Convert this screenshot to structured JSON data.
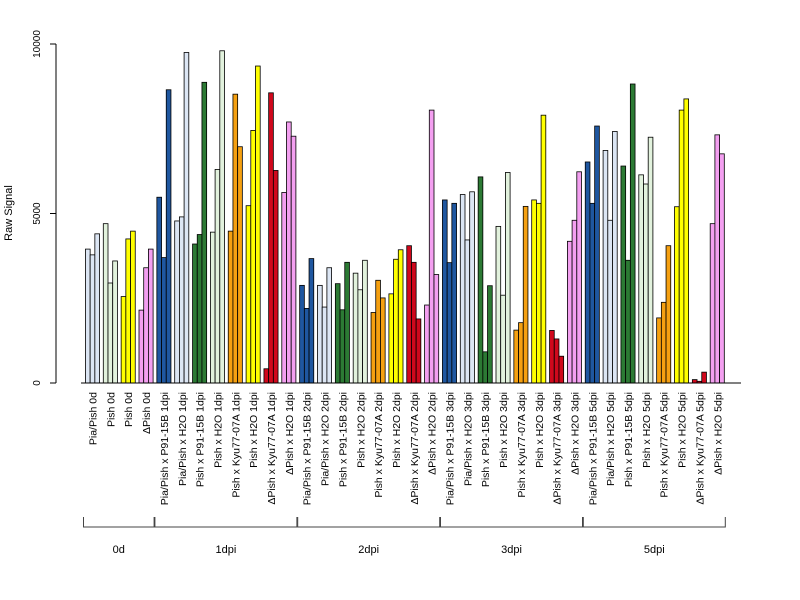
{
  "chart_data": {
    "type": "bar",
    "ylabel": "Raw Signal",
    "ylim": [
      0,
      10000
    ],
    "yticks": [
      "0",
      "5000",
      "10000"
    ],
    "legend": "none",
    "grid": false,
    "palette": {
      "light-blue": "#dce6f4",
      "dark-blue": "#1f57a0",
      "dark-green": "#2c7a34",
      "light-green": "#e2f2dd",
      "orange": "#f5a011",
      "yellow": "#ffff00",
      "red": "#d0081c",
      "pink": "#f39ff0"
    },
    "categories": [
      "Pia/Pish 0d",
      "Pish 0d",
      "Pish 0d",
      "ΔPish 0d",
      "Pia/Pish x P91-15B 1dpi",
      "Pia/Pish x H2O 1dpi",
      "Pish x P91-15B 1dpi",
      "Pish x H2O 1dpi",
      "Pish x Kyu77-07A 1dpi",
      "Pish x H2O 1dpi",
      "ΔPish x Kyu77-07A 1dpi",
      "ΔPish x H2O 1dpi",
      "Pia/Pish x P91-15B 2dpi",
      "Pia/Pish x H2O 2dpi",
      "Pish x P91-15B 2dpi",
      "Pish x H2O 2dpi",
      "Pish x Kyu77-07A 2dpi",
      "Pish x H2O 2dpi",
      "ΔPish x Kyu77-07A 2dpi",
      "ΔPish x H2O 2dpi",
      "Pia/Pish x P91-15B 3dpi",
      "Pia/Pish x H2O 3dpi",
      "Pish x P91-15B 3dpi",
      "Pish x H2O 3dpi",
      "Pish x Kyu77-07A 3dpi",
      "Pish x H2O 3dpi",
      "ΔPish x Kyu77-07A 3dpi",
      "ΔPish x H2O 3dpi",
      "Pia/Pish x P91-15B 5dpi",
      "Pia/Pish x H2O 5dpi",
      "Pish x P91-15B 5dpi",
      "Pish x H2O 5dpi",
      "Pish x Kyu77-07A 5dpi",
      "Pish x H2O 5dpi",
      "ΔPish x Kyu77-07A 5dpi",
      "ΔPish x H2O 5dpi"
    ],
    "groups": [
      {
        "label": "0d",
        "start": 0,
        "end": 3
      },
      {
        "label": "1dpi",
        "start": 4,
        "end": 11
      },
      {
        "label": "2dpi",
        "start": 12,
        "end": 19
      },
      {
        "label": "3dpi",
        "start": 20,
        "end": 27
      },
      {
        "label": "5dpi",
        "start": 28,
        "end": 35
      }
    ],
    "bars": [
      {
        "color": "light-blue",
        "values": [
          3950,
          3780,
          4400
        ]
      },
      {
        "color": "light-green",
        "values": [
          4700,
          2950,
          3600
        ]
      },
      {
        "color": "yellow",
        "values": [
          2550,
          4250,
          4480
        ]
      },
      {
        "color": "pink",
        "values": [
          2150,
          3400,
          3950
        ]
      },
      {
        "color": "dark-blue",
        "values": [
          5480,
          3700,
          8650
        ]
      },
      {
        "color": "light-blue",
        "values": [
          4780,
          4900,
          9750
        ]
      },
      {
        "color": "dark-green",
        "values": [
          4100,
          4380,
          8870
        ]
      },
      {
        "color": "light-green",
        "values": [
          4450,
          6300,
          9800
        ]
      },
      {
        "color": "orange",
        "values": [
          4480,
          8520,
          6970
        ]
      },
      {
        "color": "yellow",
        "values": [
          5230,
          7450,
          9350
        ]
      },
      {
        "color": "red",
        "values": [
          420,
          8560,
          6270
        ]
      },
      {
        "color": "pink",
        "values": [
          5620,
          7700,
          7280
        ]
      },
      {
        "color": "dark-blue",
        "values": [
          2880,
          2200,
          3670
        ]
      },
      {
        "color": "light-blue",
        "values": [
          2880,
          2240,
          3400
        ]
      },
      {
        "color": "dark-green",
        "values": [
          2930,
          2160,
          3560
        ]
      },
      {
        "color": "light-green",
        "values": [
          3240,
          2750,
          3620
        ]
      },
      {
        "color": "orange",
        "values": [
          2080,
          3030,
          2510
        ]
      },
      {
        "color": "yellow",
        "values": [
          2630,
          3650,
          3930
        ]
      },
      {
        "color": "red",
        "values": [
          4050,
          3560,
          1890
        ]
      },
      {
        "color": "pink",
        "values": [
          2300,
          8050,
          3200
        ]
      },
      {
        "color": "dark-blue",
        "values": [
          5400,
          3550,
          5300
        ]
      },
      {
        "color": "light-blue",
        "values": [
          5560,
          4220,
          5640
        ]
      },
      {
        "color": "dark-green",
        "values": [
          6080,
          920,
          2870
        ]
      },
      {
        "color": "light-green",
        "values": [
          4620,
          2590,
          6210
        ]
      },
      {
        "color": "orange",
        "values": [
          1560,
          1780,
          5210
        ]
      },
      {
        "color": "yellow",
        "values": [
          5400,
          5300,
          7900
        ]
      },
      {
        "color": "red",
        "values": [
          1550,
          1300,
          790
        ]
      },
      {
        "color": "pink",
        "values": [
          4180,
          4800,
          6230
        ]
      },
      {
        "color": "dark-blue",
        "values": [
          6520,
          5300,
          7580
        ]
      },
      {
        "color": "light-blue",
        "values": [
          6860,
          4800,
          7420
        ]
      },
      {
        "color": "dark-green",
        "values": [
          6400,
          3620,
          8820
        ]
      },
      {
        "color": "light-green",
        "values": [
          6140,
          5870,
          7250
        ]
      },
      {
        "color": "orange",
        "values": [
          1920,
          2380,
          4050
        ]
      },
      {
        "color": "yellow",
        "values": [
          5200,
          8050,
          8380
        ]
      },
      {
        "color": "red",
        "values": [
          100,
          50,
          320
        ]
      },
      {
        "color": "pink",
        "values": [
          4700,
          7320,
          6760
        ]
      }
    ]
  }
}
